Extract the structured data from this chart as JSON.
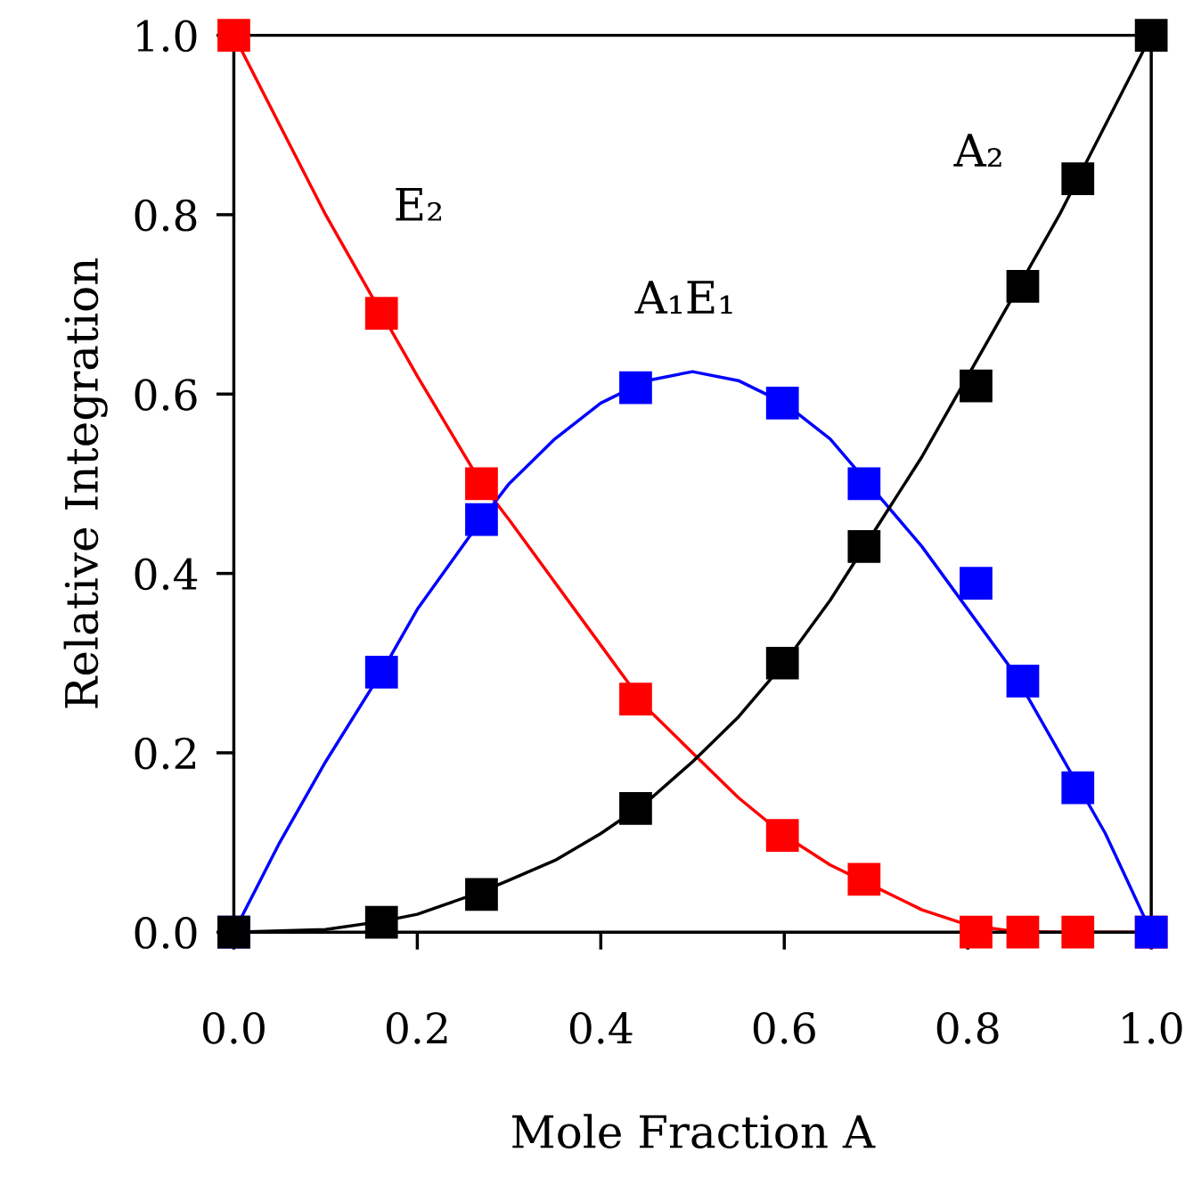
{
  "chart_data": {
    "type": "line",
    "xlabel": "Mole Fraction A",
    "ylabel": "Relative Integration",
    "xlim": [
      0,
      1
    ],
    "ylim": [
      0,
      1
    ],
    "xticks": [
      {
        "value": 0,
        "label": "0.0"
      },
      {
        "value": 0.2,
        "label": "0.2"
      },
      {
        "value": 0.4,
        "label": "0.4"
      },
      {
        "value": 0.6,
        "label": "0.6"
      },
      {
        "value": 0.8,
        "label": "0.8"
      },
      {
        "value": 1,
        "label": "1.0"
      }
    ],
    "yticks": [
      {
        "value": 0,
        "label": "0.0"
      },
      {
        "value": 0.2,
        "label": "0.2"
      },
      {
        "value": 0.4,
        "label": "0.4"
      },
      {
        "value": 0.6,
        "label": "0.6"
      },
      {
        "value": 0.8,
        "label": "0.8"
      },
      {
        "value": 1,
        "label": "1.0"
      }
    ],
    "grid": false,
    "legend": false,
    "series": [
      {
        "marker": "none",
        "line_style": "solid",
        "color": "#ff0000",
        "x": [
          0,
          0.05,
          0.1,
          0.161,
          0.2,
          0.27,
          0.3,
          0.35,
          0.4,
          0.45,
          0.5,
          0.55,
          0.6,
          0.65,
          0.7,
          0.75,
          0.8,
          0.85,
          0.9,
          1.0
        ],
        "values": [
          1,
          0.9,
          0.8,
          0.69,
          0.62,
          0.5,
          0.46,
          0.39,
          0.32,
          0.25,
          0.2,
          0.15,
          0.108,
          0.075,
          0.05,
          0.025,
          0.008,
          0.001,
          0,
          0
        ]
      },
      {
        "marker": "none",
        "line_style": "solid",
        "color": "#0000ff",
        "x": [
          0,
          0.05,
          0.1,
          0.161,
          0.2,
          0.27,
          0.3,
          0.35,
          0.4,
          0.45,
          0.5,
          0.55,
          0.6,
          0.65,
          0.7,
          0.75,
          0.8,
          0.85,
          0.9,
          0.95,
          1.0
        ],
        "values": [
          0,
          0.1,
          0.19,
          0.29,
          0.36,
          0.46,
          0.5,
          0.55,
          0.59,
          0.615,
          0.625,
          0.615,
          0.59,
          0.55,
          0.49,
          0.43,
          0.36,
          0.29,
          0.2,
          0.11,
          0
        ]
      },
      {
        "marker": "none",
        "line_style": "solid",
        "color": "#000000",
        "x": [
          0,
          0.1,
          0.161,
          0.2,
          0.27,
          0.3,
          0.35,
          0.4,
          0.45,
          0.5,
          0.55,
          0.6,
          0.65,
          0.7,
          0.75,
          0.8,
          0.85,
          0.9,
          0.95,
          1.0
        ],
        "values": [
          0,
          0.003,
          0.012,
          0.02,
          0.045,
          0.058,
          0.08,
          0.11,
          0.145,
          0.19,
          0.24,
          0.3,
          0.37,
          0.45,
          0.53,
          0.62,
          0.71,
          0.8,
          0.9,
          1.0
        ]
      },
      {
        "type": "scatter",
        "name": "E₂",
        "marker": "square",
        "color": "#ff0000",
        "x": [
          0,
          0.161,
          0.27,
          0.438,
          0.598,
          0.687,
          0.809,
          0.86,
          0.92,
          1.0
        ],
        "values": [
          1.0,
          0.69,
          0.5,
          0.26,
          0.108,
          0.059,
          0,
          0,
          0,
          0
        ]
      },
      {
        "type": "scatter",
        "name": "A₁E₁",
        "marker": "square",
        "color": "#0000ff",
        "x": [
          0,
          0.161,
          0.27,
          0.438,
          0.598,
          0.687,
          0.809,
          0.86,
          0.92,
          1.0
        ],
        "values": [
          0,
          0.29,
          0.46,
          0.607,
          0.59,
          0.5,
          0.389,
          0.28,
          0.161,
          0
        ]
      },
      {
        "type": "scatter",
        "name": "A₂",
        "marker": "square",
        "color": "#000000",
        "x": [
          0,
          0.161,
          0.27,
          0.438,
          0.598,
          0.687,
          0.809,
          0.86,
          0.92,
          1.0
        ],
        "values": [
          0,
          0.011,
          0.042,
          0.138,
          0.3,
          0.43,
          0.609,
          0.72,
          0.84,
          1.0
        ]
      }
    ]
  }
}
